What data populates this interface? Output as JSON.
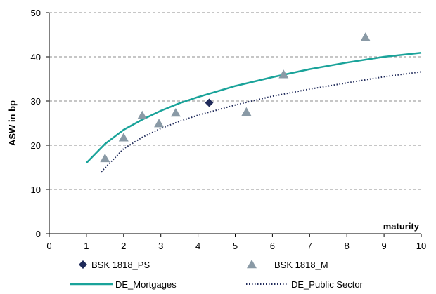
{
  "chart_data": {
    "type": "scatter",
    "title": "",
    "xlabel": "maturity",
    "ylabel": "ASW in bp",
    "xlim": [
      0,
      10
    ],
    "ylim": [
      0,
      50
    ],
    "x_ticks": [
      0,
      1,
      2,
      3,
      4,
      5,
      6,
      7,
      8,
      9,
      10
    ],
    "y_ticks": [
      0,
      10,
      20,
      30,
      40,
      50
    ],
    "grid": {
      "y_major": true,
      "style": "dashed"
    },
    "legend_position": "bottom",
    "series": [
      {
        "name": "BSK 1818_PS",
        "kind": "scatter",
        "marker": "diamond",
        "color": "#1f2a5a",
        "points": [
          {
            "x": 4.3,
            "y": 29.6
          }
        ]
      },
      {
        "name": "BSK 1818_M",
        "kind": "scatter",
        "marker": "triangle",
        "color": "#8a9aa6",
        "points": [
          {
            "x": 1.5,
            "y": 17.0
          },
          {
            "x": 2.0,
            "y": 21.7
          },
          {
            "x": 2.5,
            "y": 26.7
          },
          {
            "x": 2.95,
            "y": 24.9
          },
          {
            "x": 3.4,
            "y": 27.3
          },
          {
            "x": 5.3,
            "y": 27.5
          },
          {
            "x": 6.3,
            "y": 36.0
          },
          {
            "x": 8.5,
            "y": 44.4
          }
        ]
      },
      {
        "name": "DE_Mortgages",
        "kind": "line",
        "style": "solid",
        "color": "#1aa39a",
        "points": [
          {
            "x": 1.0,
            "y": 16.0
          },
          {
            "x": 1.5,
            "y": 20.3
          },
          {
            "x": 2.0,
            "y": 23.5
          },
          {
            "x": 2.5,
            "y": 25.8
          },
          {
            "x": 3.0,
            "y": 27.8
          },
          {
            "x": 3.5,
            "y": 29.5
          },
          {
            "x": 4.0,
            "y": 30.9
          },
          {
            "x": 5.0,
            "y": 33.4
          },
          {
            "x": 6.0,
            "y": 35.4
          },
          {
            "x": 7.0,
            "y": 37.2
          },
          {
            "x": 8.0,
            "y": 38.7
          },
          {
            "x": 9.0,
            "y": 40.0
          },
          {
            "x": 10.0,
            "y": 40.9
          }
        ]
      },
      {
        "name": "DE_Public Sector",
        "kind": "line",
        "style": "dotted",
        "color": "#1f2a5a",
        "points": [
          {
            "x": 1.4,
            "y": 14.0
          },
          {
            "x": 2.0,
            "y": 19.2
          },
          {
            "x": 2.5,
            "y": 21.8
          },
          {
            "x": 3.0,
            "y": 23.8
          },
          {
            "x": 3.5,
            "y": 25.4
          },
          {
            "x": 4.0,
            "y": 26.8
          },
          {
            "x": 5.0,
            "y": 29.1
          },
          {
            "x": 6.0,
            "y": 31.1
          },
          {
            "x": 7.0,
            "y": 32.7
          },
          {
            "x": 8.0,
            "y": 34.1
          },
          {
            "x": 9.0,
            "y": 35.5
          },
          {
            "x": 10.0,
            "y": 36.6
          }
        ]
      }
    ]
  }
}
